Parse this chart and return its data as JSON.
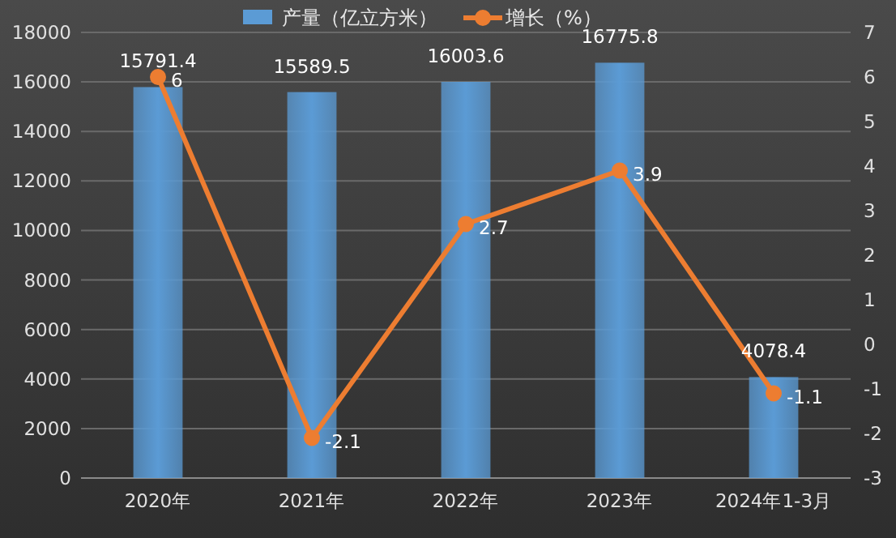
{
  "chart_data": {
    "type": "bar",
    "categories": [
      "2020年",
      "2021年",
      "2022年",
      "2023年",
      "2024年1-3月"
    ],
    "series": [
      {
        "name": "产量（亿立方米）",
        "color": "#5b9bd5",
        "values": [
          15791.4,
          15589.5,
          16003.6,
          16775.8,
          4078.4
        ]
      },
      {
        "name": "增长（%）",
        "type": "line",
        "axis": "y2",
        "color": "#ed7d31",
        "marker": "circle",
        "values": [
          6,
          -2.1,
          2.7,
          3.9,
          -1.1
        ]
      }
    ],
    "ylim": [
      0,
      18000
    ],
    "yticks": [
      0,
      2000,
      4000,
      6000,
      8000,
      10000,
      12000,
      14000,
      16000,
      18000
    ],
    "y2lim": [
      -3,
      7
    ],
    "y2ticks": [
      -3,
      -2,
      -1,
      0,
      1,
      2,
      3,
      4,
      5,
      6,
      7
    ],
    "grid": "y",
    "legend": "top",
    "data_labels": true
  }
}
